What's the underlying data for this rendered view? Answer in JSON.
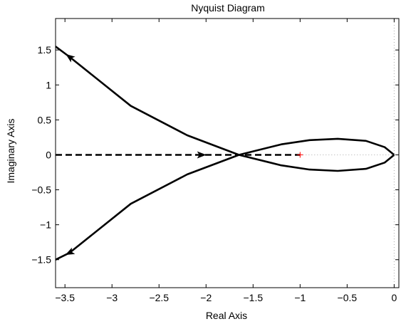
{
  "chart_data": {
    "type": "line",
    "title": "Nyquist Diagram",
    "xlabel": "Real Axis",
    "ylabel": "Imaginary Axis",
    "xlim": [
      -3.6,
      0.05
    ],
    "ylim": [
      -1.9,
      1.95
    ],
    "xticks": [
      -3.5,
      -3,
      -2.5,
      -2,
      -1.5,
      -1,
      -0.5,
      0
    ],
    "xtick_labels": [
      "−3.5",
      "−3",
      "−2.5",
      "−2",
      "−1.5",
      "−1",
      "−0.5",
      "0"
    ],
    "yticks": [
      -1.5,
      -1,
      -0.5,
      0,
      0.5,
      1,
      1.5
    ],
    "ytick_labels": [
      "−1.5",
      "−1",
      "−0.5",
      "0",
      "0.5",
      "1",
      "1.5"
    ],
    "grid": false,
    "critical_point": {
      "x": -1,
      "y": 0,
      "marker": "+",
      "color": "#ff0000"
    },
    "series": [
      {
        "style": "solid",
        "color": "#000000",
        "x": [
          -3.6,
          -3.45,
          -2.8,
          -2.2,
          -1.65,
          -1.2,
          -0.9,
          -0.6,
          -0.3,
          -0.1,
          0
        ],
        "y": [
          1.55,
          1.4,
          0.7,
          0.28,
          0.0,
          0.15,
          0.21,
          0.23,
          0.2,
          0.11,
          0.0
        ],
        "arrows": [
          {
            "x": -3.45,
            "y": 1.4,
            "direction": "toward-x-min"
          }
        ]
      },
      {
        "style": "solid",
        "color": "#000000",
        "x": [
          0,
          -0.1,
          -0.3,
          -0.6,
          -0.9,
          -1.2,
          -1.65,
          -2.2,
          -2.8,
          -3.45,
          -3.6
        ],
        "y": [
          0.0,
          -0.11,
          -0.2,
          -0.23,
          -0.21,
          -0.15,
          0.0,
          -0.28,
          -0.7,
          -1.4,
          -1.5
        ],
        "arrows": [
          {
            "x": -3.45,
            "y": -1.4,
            "direction": "toward-x-min"
          }
        ]
      },
      {
        "style": "dashed",
        "color": "#000000",
        "x": [
          -3.6,
          -1.0
        ],
        "y": [
          0.0,
          0.0
        ],
        "arrows": [
          {
            "x": -2.05,
            "y": 0.0,
            "direction": "toward-x-max"
          }
        ]
      },
      {
        "style": "dotted",
        "color": "#aaaaaa",
        "x": [
          -1.0,
          0.0
        ],
        "y": [
          0.0,
          0.0
        ]
      },
      {
        "style": "dotted",
        "color": "#aaaaaa",
        "x": [
          0.0,
          0.0
        ],
        "y": [
          -1.9,
          1.95
        ]
      }
    ]
  }
}
